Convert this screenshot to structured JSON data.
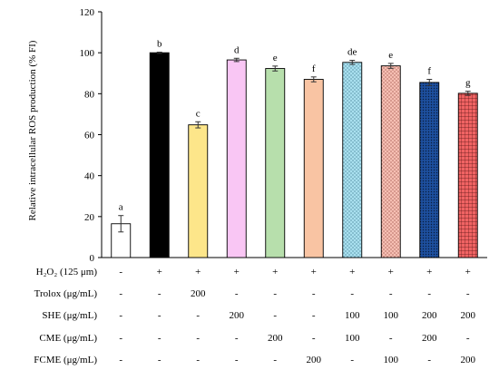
{
  "chart_data": {
    "type": "bar",
    "title": "",
    "ylabel": "Relative intracellular ROS production (% FI)",
    "ylim": [
      0,
      120
    ],
    "yticks": [
      0,
      20,
      40,
      60,
      80,
      100,
      120
    ],
    "grid": false,
    "legend": "none",
    "bars": [
      {
        "value": 16.5,
        "error": 4.0,
        "letter": "a",
        "fill": "#ffffff",
        "pattern": "none"
      },
      {
        "value": 100.0,
        "error": 0.3,
        "letter": "b",
        "fill": "#000000",
        "pattern": "none"
      },
      {
        "value": 64.8,
        "error": 1.5,
        "letter": "c",
        "fill": "#fde68a",
        "pattern": "none"
      },
      {
        "value": 96.5,
        "error": 0.8,
        "letter": "d",
        "fill": "#f9c6f4",
        "pattern": "none"
      },
      {
        "value": 92.3,
        "error": 1.2,
        "letter": "e",
        "fill": "#b7dfac",
        "pattern": "none"
      },
      {
        "value": 87.0,
        "error": 1.2,
        "letter": "f",
        "fill": "#f9c4a3",
        "pattern": "none"
      },
      {
        "value": 95.3,
        "error": 1.0,
        "letter": "de",
        "fill": "#a9e0ef",
        "pattern": "dots"
      },
      {
        "value": 93.6,
        "error": 1.2,
        "letter": "e",
        "fill": "#f6bfb3",
        "pattern": "dots"
      },
      {
        "value": 85.5,
        "error": 1.5,
        "letter": "f",
        "fill": "#1d4f9e",
        "pattern": "dots-dark"
      },
      {
        "value": 80.2,
        "error": 1.0,
        "letter": "g",
        "fill": "#f06363",
        "pattern": "grid"
      }
    ],
    "treatment_table": [
      {
        "label": "H₂O₂ (125 μm)",
        "values": [
          "-",
          "+",
          "+",
          "+",
          "+",
          "+",
          "+",
          "+",
          "+",
          "+"
        ]
      },
      {
        "label": "Trolox (μg/mL)",
        "values": [
          "-",
          "-",
          "200",
          "-",
          "-",
          "-",
          "-",
          "-",
          "-",
          "-"
        ]
      },
      {
        "label": "SHE (μg/mL)",
        "values": [
          "-",
          "-",
          "-",
          "200",
          "-",
          "-",
          "100",
          "100",
          "200",
          "200"
        ]
      },
      {
        "label": "CME (μg/mL)",
        "values": [
          "-",
          "-",
          "-",
          "-",
          "200",
          "-",
          "100",
          "-",
          "200",
          "-"
        ]
      },
      {
        "label": "FCME (μg/mL)",
        "values": [
          "-",
          "-",
          "-",
          "-",
          "-",
          "200",
          "-",
          "100",
          "-",
          "200"
        ]
      }
    ]
  }
}
